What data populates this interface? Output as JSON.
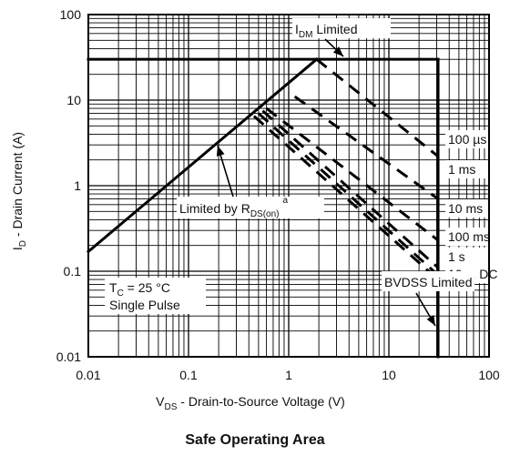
{
  "chart_data": {
    "type": "line",
    "title": "Safe Operating Area",
    "xlabel": {
      "main": "V",
      "sub": "DS",
      "rest": " - Drain-to-Source Voltage (V)"
    },
    "ylabel": {
      "main": "I",
      "sub": "D",
      "rest": " - Drain Current (A)"
    },
    "x_scale": "log",
    "y_scale": "log",
    "xlim": [
      0.01,
      100
    ],
    "ylim": [
      0.01,
      100
    ],
    "x_ticks": [
      "0.01",
      "0.1",
      "1",
      "10",
      "100"
    ],
    "y_ticks": [
      "0.01",
      "0.1",
      "1",
      "10",
      "100"
    ],
    "grid": true,
    "boundary": {
      "rds_on_line": {
        "x": [
          0.01,
          1.9
        ],
        "y": [
          0.17,
          30
        ]
      },
      "idm_limit": {
        "x": [
          0.01,
          31
        ],
        "y": [
          30,
          30
        ]
      },
      "bvdss_limit": {
        "x": [
          31,
          31
        ],
        "y": [
          30,
          0.01
        ]
      }
    },
    "pulse_series": [
      {
        "name": "100 µs",
        "x": [
          1.9,
          31
        ],
        "y": [
          30,
          2.2
        ]
      },
      {
        "name": "1 ms",
        "x": [
          1.15,
          31
        ],
        "y": [
          11,
          0.7
        ]
      },
      {
        "name": "10 ms",
        "x": [
          0.6,
          31
        ],
        "y": [
          8,
          0.23
        ]
      },
      {
        "name": "100 ms",
        "x": [
          0.55,
          31
        ],
        "y": [
          7.5,
          0.11
        ]
      },
      {
        "name": "1 s",
        "x": [
          0.5,
          31
        ],
        "y": [
          7,
          0.09
        ]
      },
      {
        "name": "10 s, DC",
        "x": [
          0.45,
          31
        ],
        "y": [
          6.5,
          0.08
        ]
      }
    ],
    "annotations": {
      "idm": {
        "main": "I",
        "sub": "DM",
        "rest": " Limited"
      },
      "rds": {
        "main": "Limited by R",
        "sub": "DS(on)",
        "sup": "a"
      },
      "bvdss": "BVDSS Limited",
      "tc": {
        "main": "T",
        "sub": "C",
        "rest": " = 25 °C"
      },
      "pulse": "Single Pulse"
    }
  }
}
